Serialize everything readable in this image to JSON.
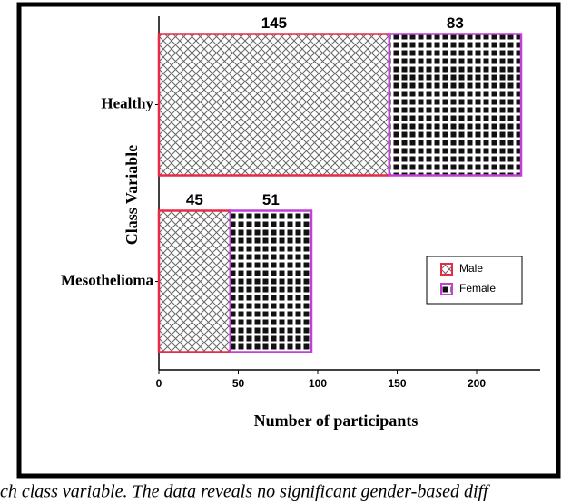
{
  "chart_data": {
    "type": "stacked-barh",
    "categories": [
      "Healthy",
      "Mesothelioma"
    ],
    "series": [
      {
        "name": "Male",
        "color": "#e8294a",
        "values": [
          145,
          45
        ]
      },
      {
        "name": "Female",
        "color": "#c23fd8",
        "values": [
          83,
          51
        ]
      }
    ],
    "xlabel": "Number of participants",
    "ylabel": "Class Variable",
    "xlim": [
      0,
      240
    ],
    "xticks": [
      0,
      50,
      100,
      150,
      200
    ],
    "legend": "right",
    "caption": "ch class variable. The data reveals no significant gender-based diff"
  }
}
